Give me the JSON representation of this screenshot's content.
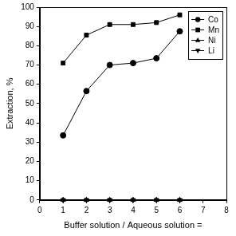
{
  "chart_data": {
    "type": "line",
    "x_label": "Buffer solution / Aqueous solution =",
    "y_label": "Extraction, %",
    "x": [
      1,
      2,
      3,
      4,
      5,
      6
    ],
    "series": [
      {
        "name": "Co",
        "color": "#000000",
        "marker": "circle",
        "values": [
          33.5,
          56.5,
          70,
          71,
          73.5,
          87.5
        ]
      },
      {
        "name": "Mn",
        "color": "#000000",
        "marker": "square",
        "values": [
          71,
          85.5,
          91,
          91,
          92,
          96
        ]
      },
      {
        "name": "Ni",
        "color": "#000000",
        "marker": "triangle-up",
        "values": [
          0,
          0,
          0,
          0,
          0,
          0
        ]
      },
      {
        "name": "Li",
        "color": "#000000",
        "marker": "triangle-down",
        "values": [
          0,
          0,
          0,
          0,
          0,
          0
        ]
      }
    ],
    "xlim": [
      0,
      8
    ],
    "xticks": [
      0,
      1,
      2,
      3,
      4,
      5,
      6,
      7,
      8
    ],
    "ylim": [
      0,
      100
    ],
    "yticks": [
      0,
      10,
      20,
      30,
      40,
      50,
      60,
      70,
      80,
      90,
      100
    ],
    "grid": false,
    "legend": "upper right"
  }
}
